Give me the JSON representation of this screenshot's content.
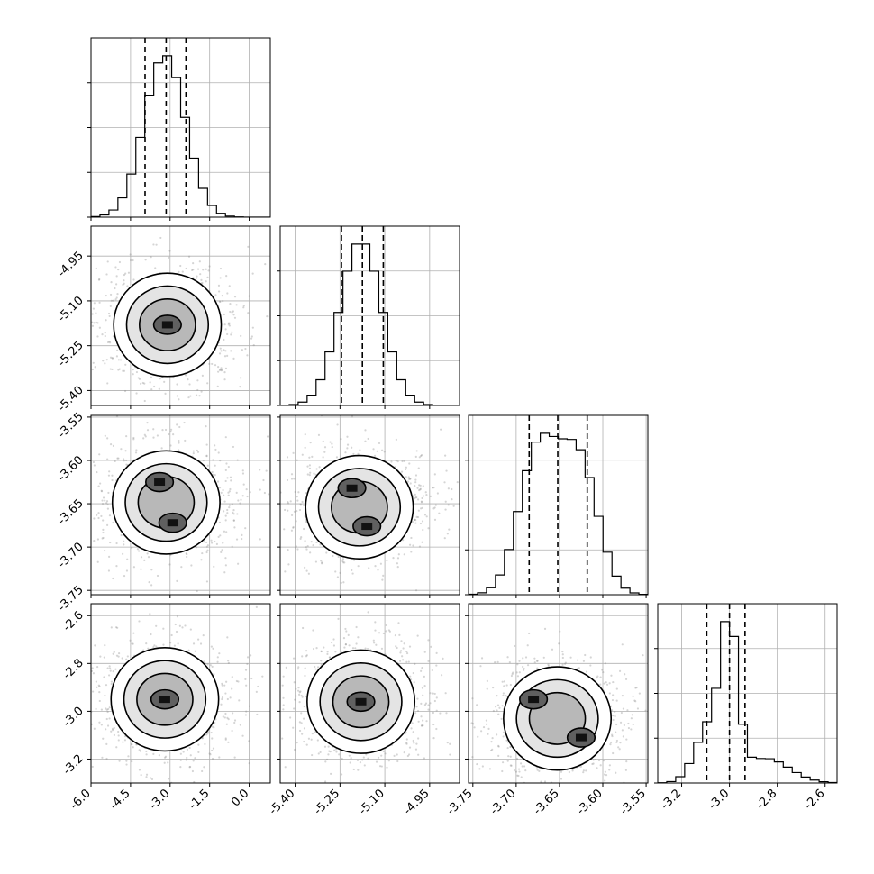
{
  "chart_data": {
    "type": "corner",
    "title": "",
    "grid": true,
    "parameters": [
      {
        "range": [
          -6.0,
          0.8
        ],
        "ticks": [
          "-6.0",
          "-4.5",
          "-3.0",
          "-1.5",
          "0.0"
        ],
        "tick_values": [
          -6.0,
          -4.5,
          -3.0,
          -1.5,
          0.0
        ],
        "quantiles": [
          -3.95,
          -3.15,
          -2.4
        ],
        "mode": -3.2,
        "hist_sd": 0.78
      },
      {
        "range": [
          -5.45,
          -4.85
        ],
        "ticks": [
          "-5.40",
          "-5.25",
          "-5.10",
          "-4.95"
        ],
        "tick_values": [
          -5.4,
          -5.25,
          -5.1,
          -4.95
        ],
        "quantiles": [
          -5.245,
          -5.175,
          -5.105
        ],
        "mode": -5.18,
        "hist_sd": 0.07
      },
      {
        "range": [
          -3.755,
          -3.548
        ],
        "ticks": [
          "-3.75",
          "-3.70",
          "-3.65",
          "-3.60",
          "-3.55"
        ],
        "tick_values": [
          -3.75,
          -3.7,
          -3.65,
          -3.6,
          -3.55
        ],
        "quantiles": [
          -3.685,
          -3.652,
          -3.618
        ],
        "mode": -3.675,
        "hist_sd": 0.03
      },
      {
        "range": [
          -3.3,
          -2.55
        ],
        "ticks": [
          "-3.2",
          "-3.0",
          "-2.8",
          "-2.6"
        ],
        "tick_values": [
          -3.2,
          -3.0,
          -2.8,
          -2.6
        ],
        "quantiles": [
          -3.095,
          -3.0,
          -2.935
        ],
        "mode": -2.995,
        "hist_sd": 0.06
      }
    ],
    "joint_peaks": [
      {
        "panel": [
          1,
          0
        ],
        "x": -3.1,
        "y": -5.18
      },
      {
        "panel": [
          2,
          0
        ],
        "x": -3.4,
        "y": -3.625
      },
      {
        "panel": [
          2,
          0
        ],
        "x": -2.9,
        "y": -3.672
      },
      {
        "panel": [
          2,
          1
        ],
        "x": -5.21,
        "y": -3.632
      },
      {
        "panel": [
          2,
          1
        ],
        "x": -5.16,
        "y": -3.676
      },
      {
        "panel": [
          3,
          0
        ],
        "x": -3.2,
        "y": -2.95
      },
      {
        "panel": [
          3,
          1
        ],
        "x": -5.18,
        "y": -2.96
      },
      {
        "panel": [
          3,
          2
        ],
        "x": -3.68,
        "y": -2.95
      },
      {
        "panel": [
          3,
          2
        ],
        "x": -3.625,
        "y": -3.11
      }
    ]
  }
}
